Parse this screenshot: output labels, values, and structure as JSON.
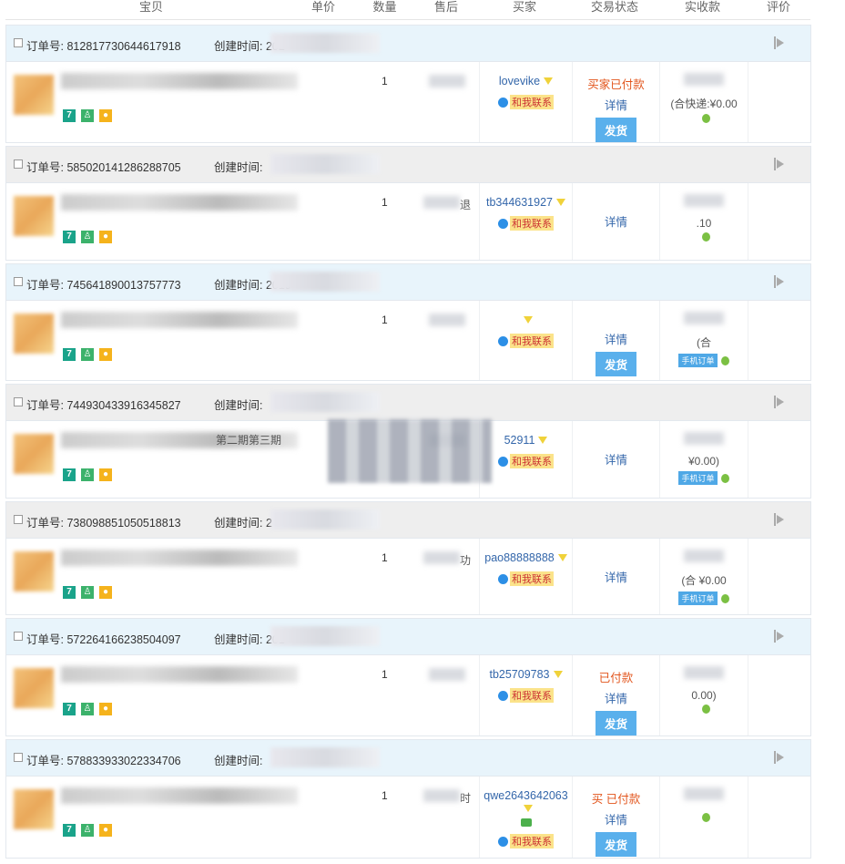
{
  "columns": [
    "宝贝",
    "单价",
    "数量",
    "售后",
    "买家",
    "交易状态",
    "实收款",
    "评价"
  ],
  "labels": {
    "order_no": "订单号:",
    "created": "创建时间:",
    "detail": "详情",
    "ship": "发货",
    "contact": "和我联系",
    "mobile_order": "手机订单"
  },
  "orders": [
    {
      "no": "812817730644617918",
      "created_prefix": "202",
      "header": "blue",
      "qty": "1",
      "buyer": "lovevike",
      "status": "买家已付款",
      "ship": true,
      "total": "(合快递:¥0.00",
      "product_text": "",
      "after_sale": "",
      "mobile": false,
      "chat": false
    },
    {
      "no": "585020141286288705",
      "created_prefix": "",
      "header": "gray",
      "qty": "1",
      "buyer": "tb344631927",
      "status": "",
      "ship": false,
      "total": ".10",
      "product_text": "",
      "after_sale": "退",
      "mobile": false,
      "chat": false
    },
    {
      "no": "745641890013757773",
      "created_prefix": "2019",
      "header": "blue",
      "qty": "1",
      "buyer": "",
      "status": "",
      "ship": true,
      "total": "(合",
      "product_text": "",
      "after_sale": "",
      "mobile": true,
      "chat": false
    },
    {
      "no": "744930433916345827",
      "created_prefix": "",
      "header": "gray",
      "qty": "",
      "buyer": "52911",
      "status": "",
      "ship": false,
      "total": "¥0.00)",
      "product_text": "第二期第三期",
      "after_sale": "",
      "mobile": true,
      "chat": false
    },
    {
      "no": "738098851050518813",
      "created_prefix": "2",
      "header": "gray",
      "qty": "1",
      "buyer": "pao88888888",
      "status": "",
      "ship": false,
      "total": "(合 ¥0.00",
      "product_text": "",
      "after_sale": "功",
      "mobile": true,
      "chat": false
    },
    {
      "no": "572264166238504097",
      "created_prefix": "201",
      "header": "blue",
      "qty": "1",
      "buyer": "tb25709783",
      "status": "已付款",
      "ship": true,
      "total": "0.00)",
      "product_text": "",
      "after_sale": "",
      "mobile": false,
      "chat": false
    },
    {
      "no": "578833933022334706",
      "created_prefix": "",
      "header": "blue",
      "qty": "1",
      "buyer": "qwe2643642063",
      "status": "买 已付款",
      "ship": true,
      "total": "",
      "product_text": "",
      "after_sale": "时",
      "mobile": false,
      "chat": true
    }
  ]
}
